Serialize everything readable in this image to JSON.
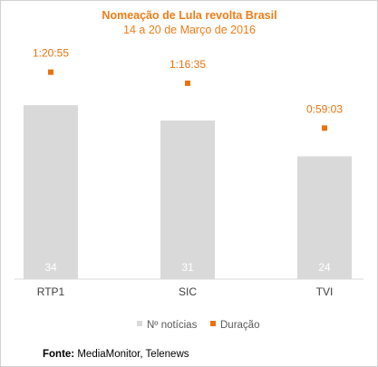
{
  "chart_data": {
    "type": "bar",
    "title": "Nomeação de Lula revolta Brasil",
    "subtitle": "14 a 20 de Março de 2016",
    "categories": [
      "RTP1",
      "SIC",
      "TVI"
    ],
    "series": [
      {
        "name": "Nº notícias",
        "kind": "bar",
        "values": [
          34,
          31,
          24
        ],
        "color": "#d9d9d9"
      },
      {
        "name": "Duração",
        "kind": "marker",
        "values": [
          "1:20:55",
          "1:16:35",
          "0:59:03"
        ],
        "values_seconds": [
          4855,
          4595,
          3543
        ],
        "color": "#e8730d"
      }
    ],
    "ylim_bars": [
      0,
      45
    ],
    "ylim_duration_seconds": [
      0,
      5400
    ],
    "grid": false,
    "legend_position": "bottom"
  },
  "footer": {
    "label": "Fonte:",
    "text": "MediaMonitor, Telenews"
  }
}
